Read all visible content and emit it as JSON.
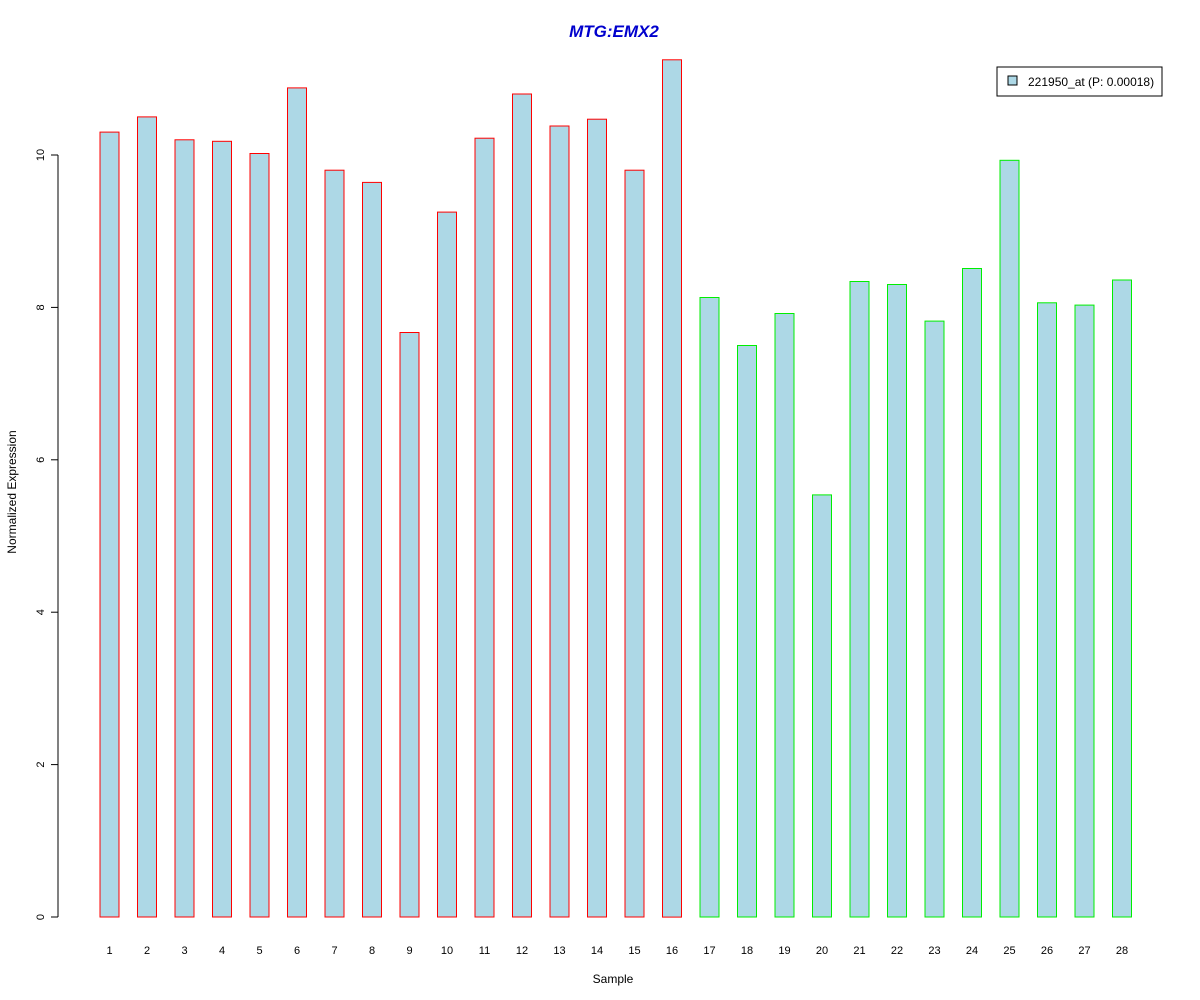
{
  "chart_data": {
    "type": "bar",
    "title": "MTG:EMX2",
    "xlabel": "Sample",
    "ylabel": "Normalized Expression",
    "categories": [
      "1",
      "2",
      "3",
      "4",
      "5",
      "6",
      "7",
      "8",
      "9",
      "10",
      "11",
      "12",
      "13",
      "14",
      "15",
      "16",
      "17",
      "18",
      "19",
      "20",
      "21",
      "22",
      "23",
      "24",
      "25",
      "26",
      "27",
      "28"
    ],
    "series": [
      {
        "name": "221950_at (P: 0.00018)",
        "values": [
          10.3,
          10.5,
          10.2,
          10.18,
          10.02,
          10.88,
          9.8,
          9.64,
          7.67,
          9.25,
          10.22,
          10.8,
          10.38,
          10.47,
          9.8,
          11.25,
          8.13,
          7.5,
          7.92,
          5.54,
          8.34,
          8.3,
          7.82,
          8.51,
          9.93,
          8.06,
          8.03,
          8.36
        ]
      }
    ],
    "group_border_colors": [
      "#ff0000",
      "#ff0000",
      "#ff0000",
      "#ff0000",
      "#ff0000",
      "#ff0000",
      "#ff0000",
      "#ff0000",
      "#ff0000",
      "#ff0000",
      "#ff0000",
      "#ff0000",
      "#ff0000",
      "#ff0000",
      "#ff0000",
      "#ff0000",
      "#00ee00",
      "#00ee00",
      "#00ee00",
      "#00ee00",
      "#00ee00",
      "#00ee00",
      "#00ee00",
      "#00ee00",
      "#00ee00",
      "#00ee00",
      "#00ee00",
      "#00ee00"
    ],
    "bar_fill": "#add8e6",
    "title_color": "#0000cd",
    "yticks": [
      "0",
      "2",
      "4",
      "6",
      "8",
      "10"
    ],
    "ylim": [
      0,
      11.3
    ],
    "legend_position": "top-right",
    "grid": false
  }
}
